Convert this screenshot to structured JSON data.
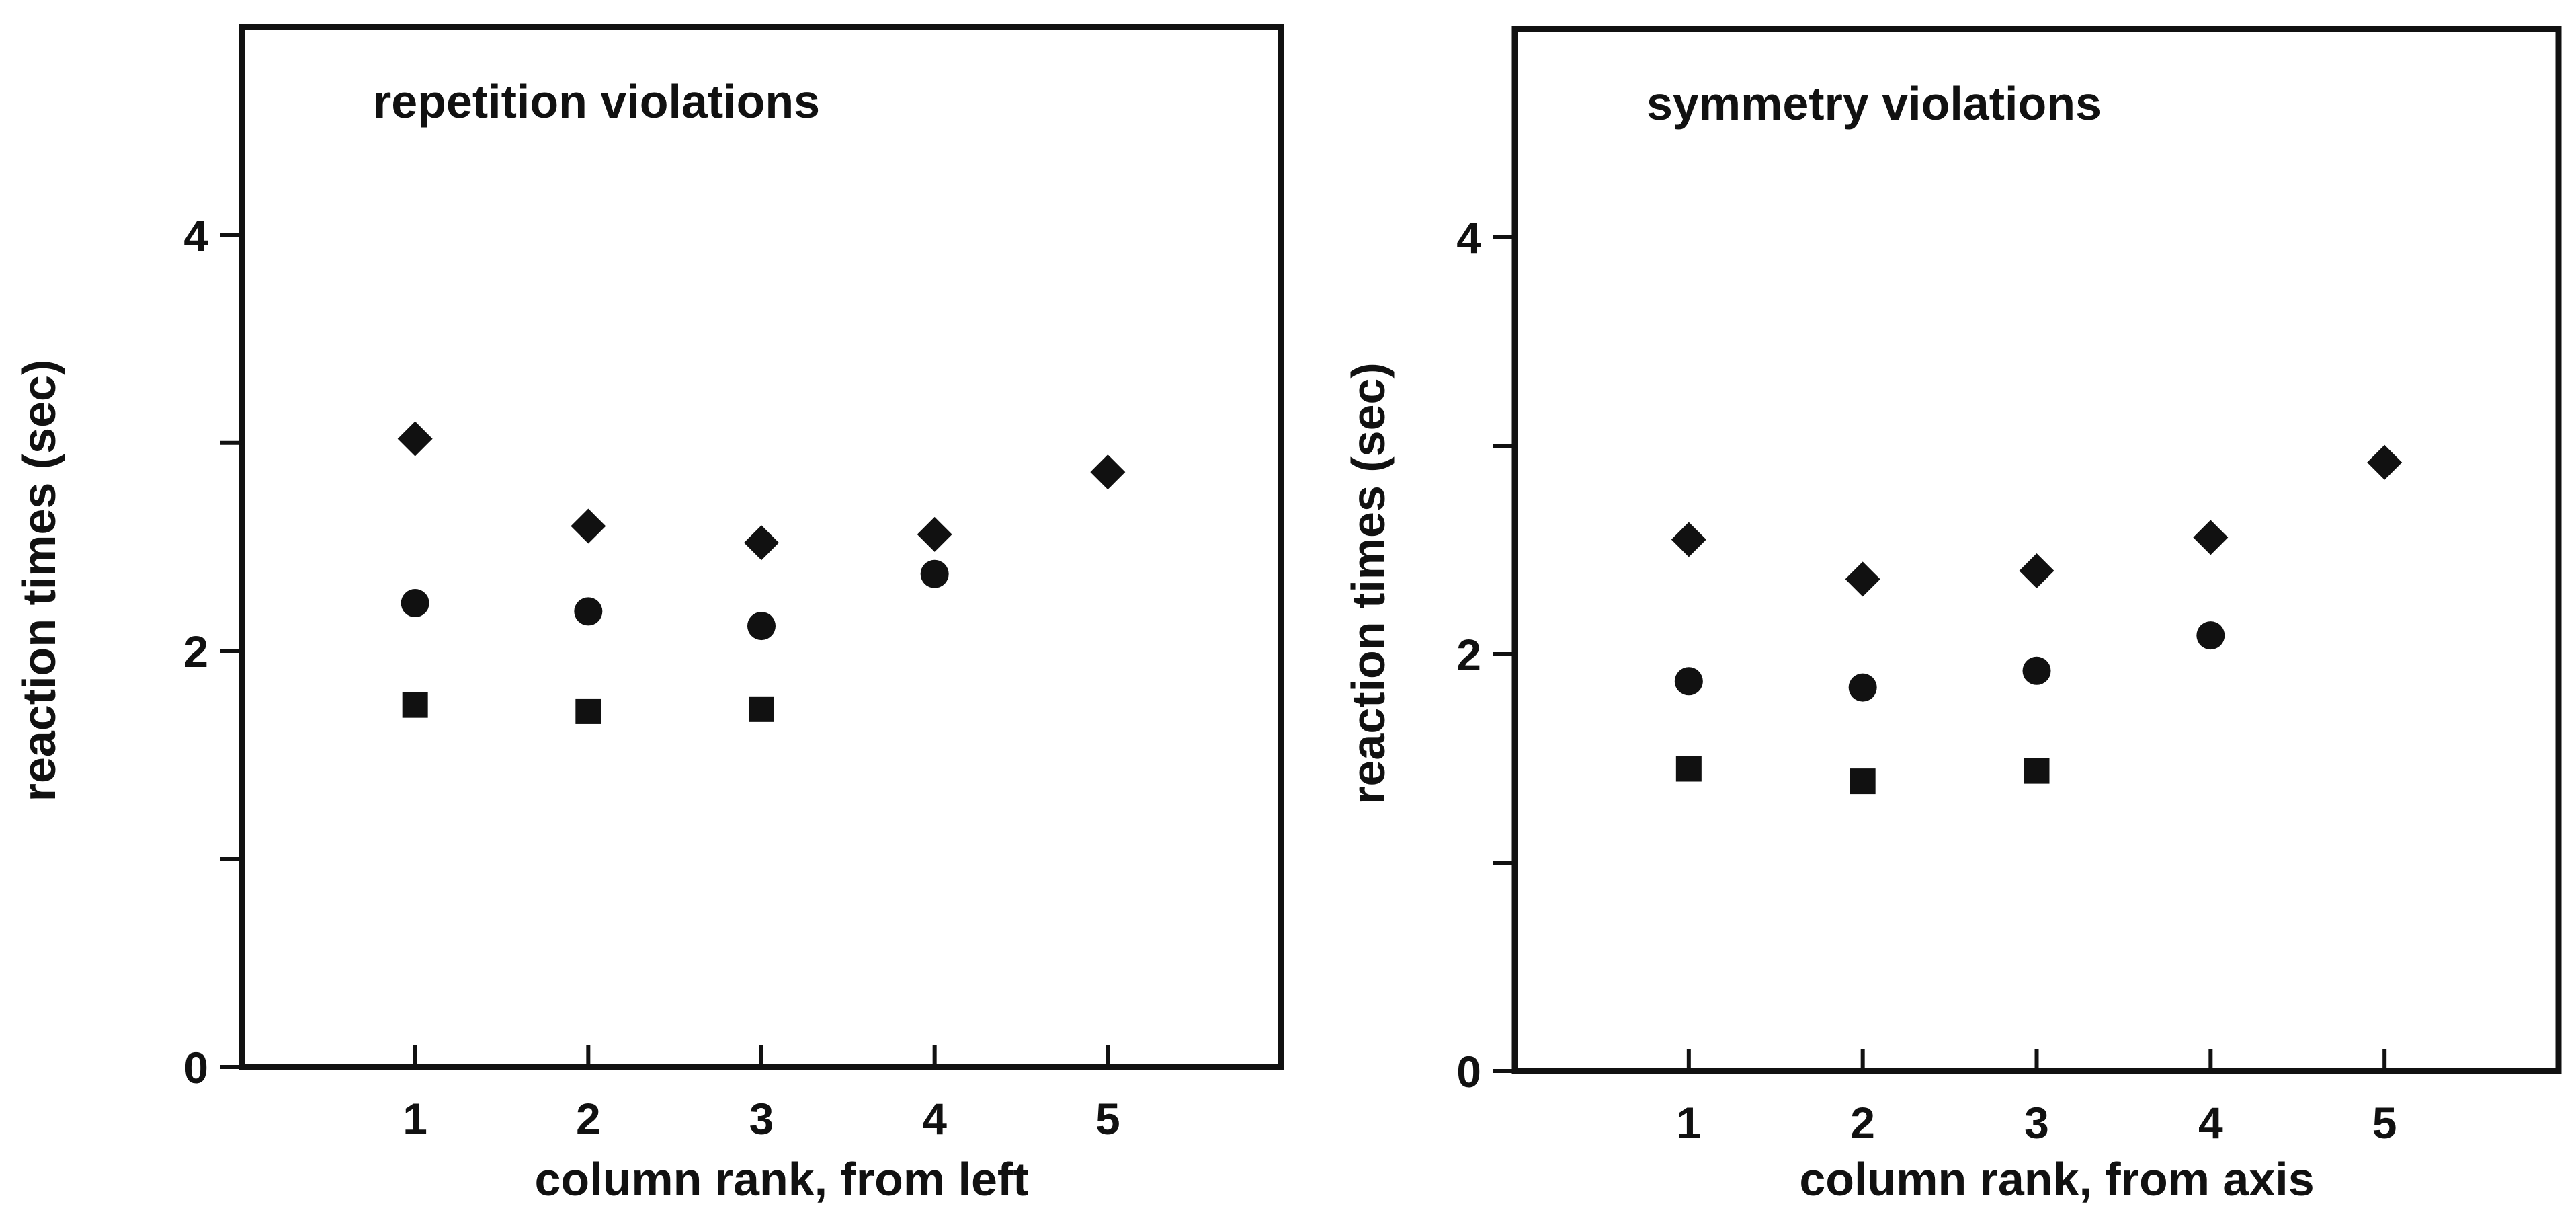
{
  "chart_data": [
    {
      "type": "scatter",
      "title": "repetition violations",
      "xlabel": "column rank, from left",
      "ylabel": "reaction times (sec)",
      "xlim": [
        0,
        6
      ],
      "ylim": [
        0,
        5
      ],
      "x_ticks": [
        "1",
        "2",
        "3",
        "4",
        "5"
      ],
      "y_ticks": [
        0,
        1,
        2,
        3,
        4
      ],
      "y_tick_labels": [
        "0",
        "",
        "2",
        "",
        "4"
      ],
      "grid": false,
      "series": [
        {
          "marker": "diamond",
          "x": [
            1,
            2,
            3,
            4,
            5
          ],
          "y": [
            3.02,
            2.6,
            2.52,
            2.56,
            2.86
          ]
        },
        {
          "marker": "circle",
          "x": [
            1,
            2,
            3,
            4
          ],
          "y": [
            2.23,
            2.19,
            2.12,
            2.37
          ]
        },
        {
          "marker": "square",
          "x": [
            1,
            2,
            3
          ],
          "y": [
            1.74,
            1.71,
            1.72
          ]
        }
      ]
    },
    {
      "type": "scatter",
      "title": "symmetry violations",
      "xlabel": "column rank, from axis",
      "ylabel": "reaction times (sec)",
      "xlim": [
        0,
        6
      ],
      "ylim": [
        0,
        5
      ],
      "x_ticks": [
        "1",
        "2",
        "3",
        "4",
        "5"
      ],
      "y_ticks": [
        0,
        1,
        2,
        3,
        4
      ],
      "y_tick_labels": [
        "0",
        "",
        "2",
        "",
        "4"
      ],
      "grid": false,
      "series": [
        {
          "marker": "diamond",
          "x": [
            1,
            2,
            3,
            4,
            5
          ],
          "y": [
            2.55,
            2.36,
            2.4,
            2.56,
            2.92
          ]
        },
        {
          "marker": "circle",
          "x": [
            1,
            2,
            3,
            4
          ],
          "y": [
            1.87,
            1.84,
            1.92,
            2.09
          ]
        },
        {
          "marker": "square",
          "x": [
            1,
            2,
            3
          ],
          "y": [
            1.45,
            1.39,
            1.44
          ]
        }
      ]
    }
  ]
}
